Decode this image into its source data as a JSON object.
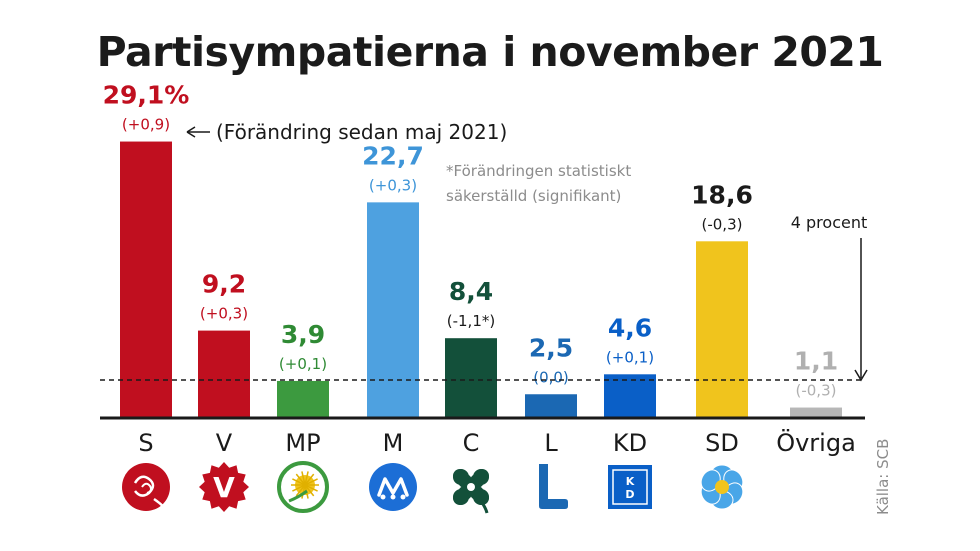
{
  "title": "Partisympatierna i november 2021",
  "change_legend": "(Förändring sedan maj 2021)",
  "significance_note": [
    "*Förändringen statistiskt",
    "säkerställd (signifikant)"
  ],
  "threshold_label": "4 procent",
  "source": "Källa: SCB",
  "chart_data": {
    "type": "bar",
    "title": "Partisympatierna i november 2021",
    "categories": [
      "S",
      "V",
      "MP",
      "M",
      "C",
      "L",
      "KD",
      "SD",
      "Övriga"
    ],
    "values": [
      29.1,
      9.2,
      3.9,
      22.7,
      8.4,
      2.5,
      4.6,
      18.6,
      1.1
    ],
    "value_labels": [
      "29,1%",
      "9,2",
      "3,9",
      "22,7",
      "8,4",
      "2,5",
      "4,6",
      "18,6",
      "1,1"
    ],
    "change_labels": [
      "(+0,9)",
      "(+0,3)",
      "(+0,1)",
      "(+0,3)",
      "(-1,1*)",
      "(0,0)",
      "(+0,1)",
      "(-0,3)",
      "(-0,3)"
    ],
    "colors": [
      "#c00f1f",
      "#c00f1f",
      "#3c9a3f",
      "#4ea1e0",
      "#13503a",
      "#1b68b3",
      "#0a5fc7",
      "#f0c41d",
      "#b7b7b7"
    ],
    "label_colors": [
      "#c00f1f",
      "#c00f1f",
      "#2f8a34",
      "#3e95d8",
      "#13503a",
      "#1b68b3",
      "#0a5fc7",
      "#1a1a1a",
      "#b0b0b0"
    ],
    "change_colors": [
      "#c00f1f",
      "#c00f1f",
      "#2f8a34",
      "#3e95d8",
      "#1a1a1a",
      "#1b68b3",
      "#0a5fc7",
      "#1a1a1a",
      "#b0b0b0"
    ],
    "threshold": 4,
    "ylim": [
      0,
      30
    ],
    "logos": [
      "rose-icon",
      "v-logo-icon",
      "dandelion-icon",
      "m-logo-icon",
      "four-leaf-clover-icon",
      "l-logo-icon",
      "kd-logo-icon",
      "anemone-icon",
      ""
    ]
  }
}
